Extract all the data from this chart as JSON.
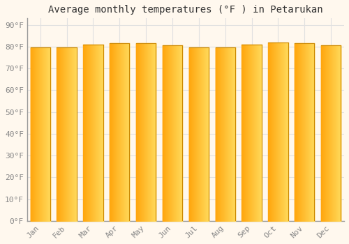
{
  "title": "Average monthly temperatures (°F ) in Petarukan",
  "months": [
    "Jan",
    "Feb",
    "Mar",
    "Apr",
    "May",
    "Jun",
    "Jul",
    "Aug",
    "Sep",
    "Oct",
    "Nov",
    "Dec"
  ],
  "values": [
    79.5,
    79.5,
    81.0,
    81.5,
    81.5,
    80.5,
    79.5,
    79.5,
    81.0,
    82.0,
    81.5,
    80.5
  ],
  "bar_color_left": "#FFA500",
  "bar_color_right": "#FFD060",
  "bar_edge_color": "#CC8800",
  "background_color": "#FFF8EE",
  "grid_color": "#E0E0E0",
  "yticks": [
    0,
    10,
    20,
    30,
    40,
    50,
    60,
    70,
    80,
    90
  ],
  "ylim": [
    0,
    93
  ],
  "title_fontsize": 10,
  "tick_fontsize": 8,
  "font_family": "monospace"
}
